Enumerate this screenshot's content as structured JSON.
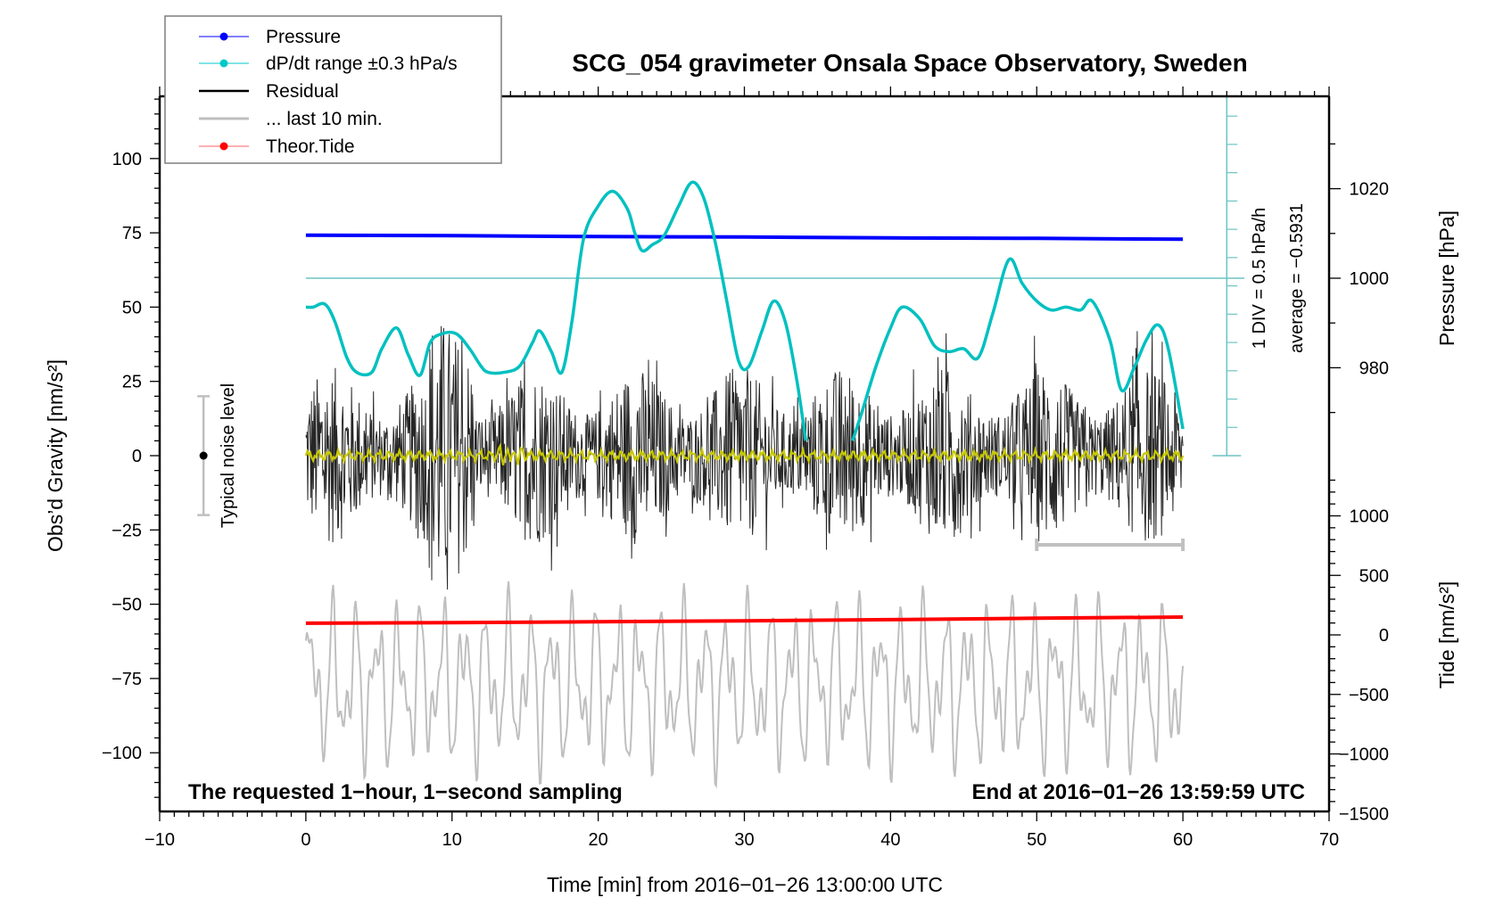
{
  "chart_data": {
    "type": "line",
    "title": "SCG_054 gravimeter Onsala Space Observatory, Sweden",
    "xlabel": "Time [min] from 2016−01−26 13:00:00 UTC",
    "ylabel_left": "Obs’d Gravity [nm/s²]",
    "ylabel_right_top": "Pressure [hPa]",
    "ylabel_right_bottom": "Tide [nm/s²]",
    "xlim": [
      -10,
      70
    ],
    "ylim_left": [
      -120,
      120
    ],
    "x_ticks": [
      -10,
      0,
      10,
      20,
      30,
      40,
      50,
      60,
      70
    ],
    "x_tick_labels": [
      "−10",
      "0",
      "10",
      "20",
      "30",
      "40",
      "50",
      "60",
      "70"
    ],
    "y_left_ticks": [
      100,
      75,
      50,
      25,
      0,
      -25,
      -50,
      -75,
      -100
    ],
    "y_left_tick_labels": [
      "100",
      "75",
      "50",
      "25",
      "0",
      "−25",
      "−50",
      "−75",
      "−100"
    ],
    "pressure_ticks": [
      1020,
      1000,
      980
    ],
    "pressure_tick_labels": [
      "1020",
      "1000",
      "980"
    ],
    "tide_ticks": [
      1000,
      500,
      0,
      -500,
      -1000,
      -1500
    ],
    "tide_tick_labels": [
      "1000",
      "500",
      "0",
      "−500",
      "−1000",
      "−1500"
    ],
    "legend": {
      "placement": "top-left",
      "entries": [
        {
          "label": "Pressure",
          "color": "#0000ff",
          "marker": true
        },
        {
          "label": "dP/dt range ±0.3 hPa/s",
          "color": "#00c8c8",
          "marker": true
        },
        {
          "label": "Residual",
          "color": "#000000",
          "marker": false
        },
        {
          "label": "... last 10 min.",
          "color": "#bfbfbf",
          "marker": false
        },
        {
          "label": "Theor.Tide",
          "color": "#ff0000",
          "marker": true
        }
      ]
    },
    "annotations": {
      "bottom_left": "The requested 1−hour, 1−second sampling",
      "bottom_right": "End at 2016−01−26 13:59:59 UTC",
      "noise_label": "Typical noise level",
      "div_label": "1 DIV = 0.5 hPa/h",
      "average_label": "average = −0.5931"
    },
    "noise_bar": {
      "x": -7,
      "center": 0,
      "half_range": 20
    },
    "last10_bar": {
      "x_start": 50,
      "x_end": 60,
      "y": -30
    },
    "series": [
      {
        "name": "Pressure",
        "axis": "pressure",
        "color": "#0000ff",
        "x": [
          0,
          10,
          20,
          30,
          40,
          50,
          60
        ],
        "values": [
          1009.6,
          1009.5,
          1009.3,
          1009.2,
          1009.0,
          1008.9,
          1008.7
        ]
      },
      {
        "name": "dP/dt (scaled on gravity axis)",
        "axis": "left",
        "color": "#00c0c0",
        "x": [
          0,
          0.5,
          1.3,
          2,
          2.8,
          3.5,
          4.5,
          5.2,
          6.2,
          7,
          7.8,
          8.5,
          9.3,
          10.3,
          11.2,
          12,
          12.5,
          13.5,
          14.6,
          15.5,
          16,
          16.8,
          17.5,
          18.2,
          19,
          20,
          21,
          22,
          22.5,
          23,
          23.7,
          24.5,
          25.5,
          26.4,
          27.2,
          28,
          28.8,
          29.6,
          30.3,
          31.2,
          32,
          32.8,
          33.6,
          34.2
        ],
        "values": [
          50,
          50,
          51,
          45,
          33,
          28,
          28,
          36,
          43,
          34,
          27,
          38,
          41,
          41,
          36,
          30,
          28,
          28,
          30,
          38,
          42,
          35,
          28,
          45,
          73,
          84,
          89,
          83,
          75,
          69,
          71,
          74,
          84,
          92,
          87,
          72,
          52,
          32,
          30,
          42,
          52,
          45,
          25,
          5
        ]
      },
      {
        "name": "dP/dt (scaled on gravity axis) cont.",
        "axis": "left",
        "color": "#00c0c0",
        "x": [
          37.4,
          38,
          39,
          40,
          40.8,
          42,
          43,
          44,
          45,
          46,
          47,
          48.1,
          49,
          50,
          51,
          52,
          53,
          53.8,
          55,
          55.8,
          56.7,
          57.5,
          58.3,
          59,
          60
        ],
        "values": [
          5,
          14,
          30,
          43,
          50,
          46,
          37,
          35,
          36,
          33,
          48,
          66,
          58,
          52,
          49,
          50,
          49,
          52,
          39,
          22,
          30,
          39,
          44,
          36,
          9
        ]
      },
      {
        "name": "Residual",
        "axis": "left",
        "color": "#000000",
        "x_range": [
          0,
          60
        ],
        "approx_amplitude": 30,
        "max_amplitude": 50
      },
      {
        "name": "Residual (smoothed)",
        "axis": "left",
        "color": "#c8c800",
        "x_range": [
          0,
          60
        ],
        "approx_amplitude": 2
      },
      {
        "name": "Theor.Tide",
        "axis": "tide",
        "color": "#ff0000",
        "x": [
          0,
          10,
          20,
          30,
          40,
          50,
          60
        ],
        "values": [
          98,
          103,
          110,
          118,
          128,
          140,
          150
        ]
      },
      {
        "name": "... last 10 min.",
        "axis": "left",
        "color": "#bfbfbf",
        "x_range": [
          0,
          60
        ],
        "approx_center": -77,
        "approx_amplitude": 28
      }
    ]
  }
}
